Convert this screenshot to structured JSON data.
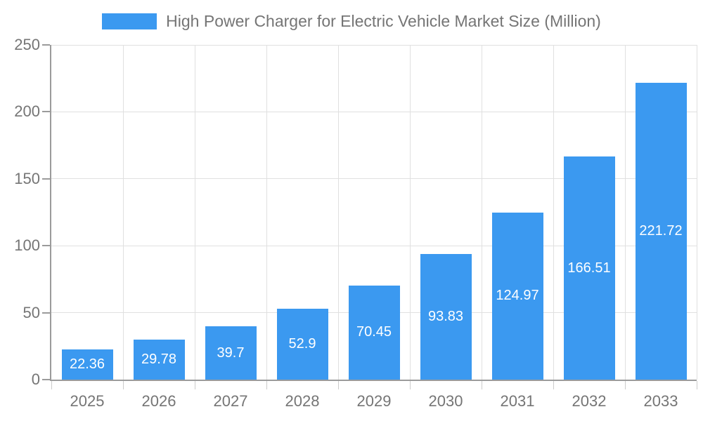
{
  "chart_data": {
    "type": "bar",
    "title": "High Power Charger for Electric Vehicle Market Size (Million)",
    "categories": [
      "2025",
      "2026",
      "2027",
      "2028",
      "2029",
      "2030",
      "2031",
      "2032",
      "2033"
    ],
    "values": [
      22.36,
      29.78,
      39.7,
      52.9,
      70.45,
      93.83,
      124.97,
      166.51,
      221.72
    ],
    "value_labels": [
      "22.36",
      "29.78",
      "39.7",
      "52.9",
      "70.45",
      "93.83",
      "124.97",
      "166.51",
      "221.72"
    ],
    "xlabel": "",
    "ylabel": "",
    "ylim": [
      0,
      250
    ],
    "y_ticks": [
      0,
      50,
      100,
      150,
      200,
      250
    ],
    "grid": true,
    "legend": {
      "position": "top",
      "label": "High Power Charger for Electric Vehicle Market Size (Million)"
    },
    "colors": {
      "bar": "#3b99f0",
      "value_label": "#ffffff",
      "axis_text": "#757575",
      "title_text": "#757575",
      "axis_line": "#9b9b9b",
      "grid_line": "#e0e0e0",
      "tick_line": "#cccccc"
    }
  }
}
